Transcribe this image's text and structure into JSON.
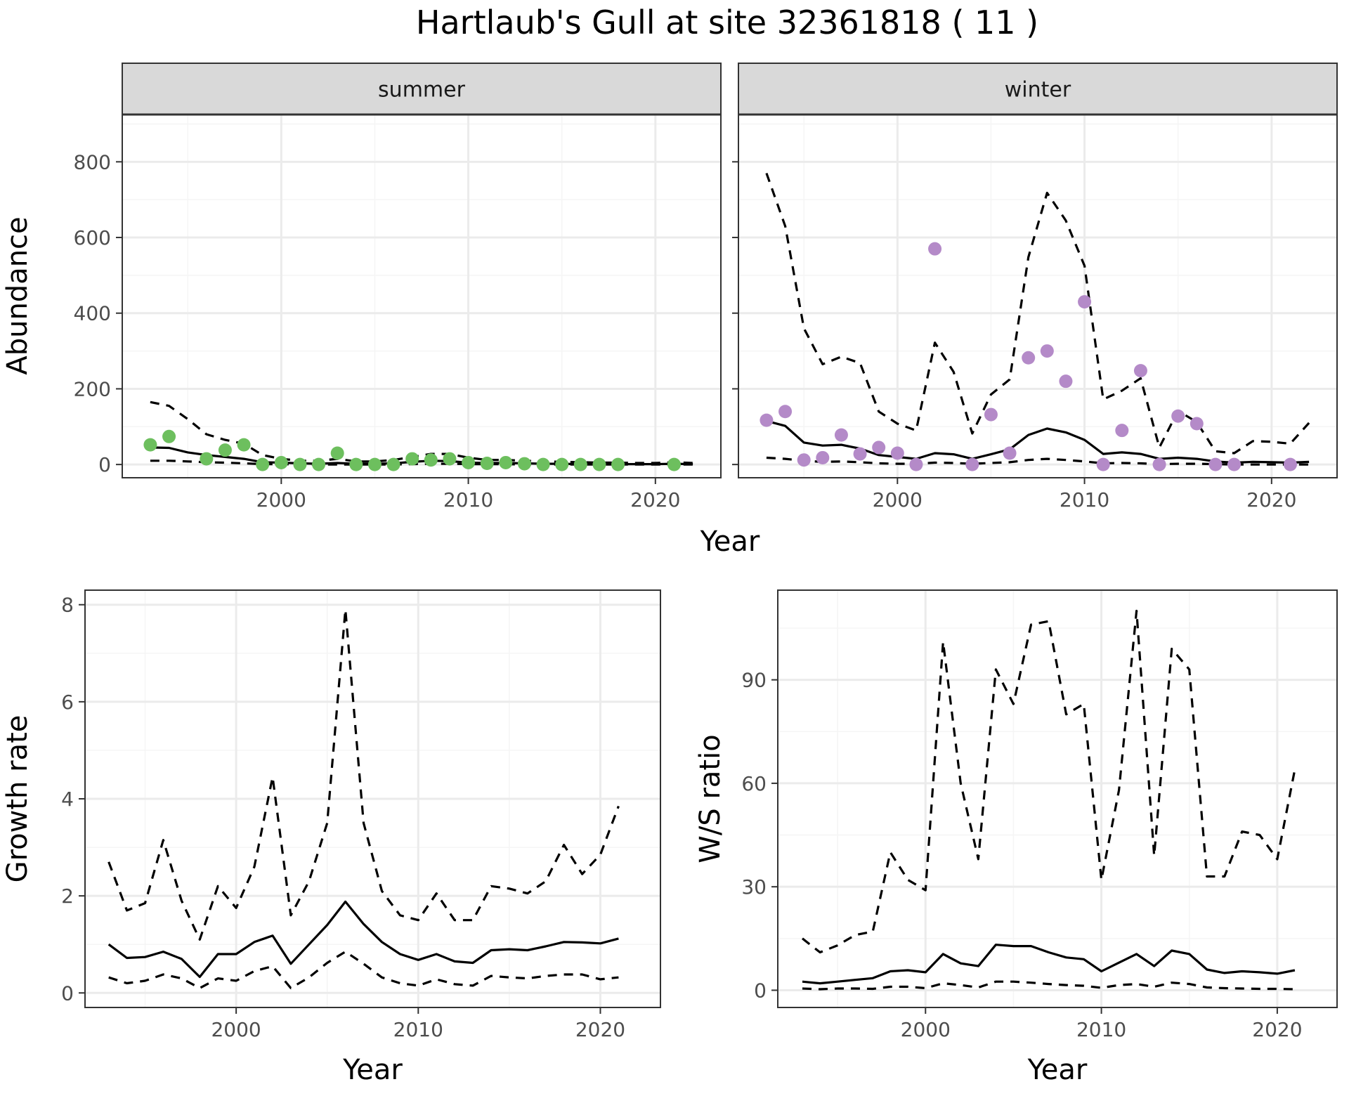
{
  "title": "Hartlaub's Gull at site 32361818 ( 11 )",
  "colors": {
    "summer_points": "#6dbf5e",
    "winter_points": "#b48ac8",
    "lines": "#000000",
    "grid_major": "#ebebeb",
    "grid_minor": "#f5f5f5",
    "strip_background": "#d9d9d9"
  },
  "chart_data": [
    {
      "type": "line",
      "panel": "summer",
      "strip": "summer",
      "xlabel": "Year",
      "ylabel": "Abundance",
      "xlim": [
        1991.5,
        2023.5
      ],
      "ylim": [
        -35,
        925
      ],
      "xticks": [
        2000,
        2010,
        2020
      ],
      "yticks": [
        0,
        200,
        400,
        600,
        800
      ],
      "grid": true,
      "points": {
        "x": [
          1993,
          1994,
          1996,
          1997,
          1998,
          1999,
          2000,
          2001,
          2002,
          2003,
          2004,
          2005,
          2006,
          2007,
          2008,
          2009,
          2010,
          2011,
          2012,
          2013,
          2014,
          2015,
          2016,
          2017,
          2018,
          2021
        ],
        "y": [
          52,
          74,
          15,
          38,
          52,
          0,
          5,
          0,
          0,
          30,
          0,
          0,
          0,
          15,
          12,
          15,
          5,
          3,
          5,
          2,
          0,
          0,
          0,
          0,
          0,
          0
        ]
      },
      "series": [
        {
          "x": [
            1993,
            1994,
            1995,
            1996,
            1997,
            1998,
            1999,
            2000,
            2001,
            2002,
            2003,
            2004,
            2005,
            2006,
            2007,
            2008,
            2009,
            2010,
            2011,
            2012,
            2013,
            2014,
            2015,
            2016,
            2017,
            2018,
            2019,
            2020,
            2021,
            2022
          ],
          "y": [
            45,
            44,
            32,
            25,
            20,
            15,
            6,
            5,
            3,
            2,
            4,
            2,
            2,
            3,
            7,
            10,
            9,
            5,
            4,
            4,
            3,
            2,
            2,
            1,
            1,
            1,
            1,
            1,
            2,
            1
          ]
        },
        {
          "x": [
            1993,
            1994,
            1995,
            1996,
            1997,
            1998,
            1999,
            2000,
            2001,
            2002,
            2003,
            2004,
            2005,
            2006,
            2007,
            2008,
            2009,
            2010,
            2011,
            2012,
            2013,
            2014,
            2015,
            2016,
            2017,
            2018,
            2019,
            2020,
            2021,
            2022
          ],
          "y": [
            165,
            155,
            120,
            80,
            65,
            55,
            25,
            15,
            10,
            10,
            15,
            8,
            8,
            12,
            20,
            28,
            28,
            18,
            12,
            12,
            10,
            8,
            7,
            6,
            5,
            5,
            4,
            4,
            6,
            4
          ]
        },
        {
          "x": [
            1993,
            1994,
            1995,
            1996,
            1997,
            1998,
            1999,
            2000,
            2001,
            2002,
            2003,
            2004,
            2005,
            2006,
            2007,
            2008,
            2009,
            2010,
            2011,
            2012,
            2013,
            2014,
            2015,
            2016,
            2017,
            2018,
            2019,
            2020,
            2021,
            2022
          ],
          "y": [
            10,
            10,
            8,
            6,
            5,
            3,
            1,
            1,
            0,
            0,
            0,
            0,
            0,
            0,
            1,
            2,
            2,
            1,
            1,
            1,
            0,
            0,
            0,
            0,
            0,
            0,
            0,
            0,
            0,
            0
          ]
        }
      ]
    },
    {
      "type": "line",
      "panel": "winter",
      "strip": "winter",
      "xlabel": "Year",
      "ylabel": "Abundance",
      "xlim": [
        1991.5,
        2023.5
      ],
      "ylim": [
        -35,
        925
      ],
      "xticks": [
        2000,
        2010,
        2020
      ],
      "yticks": [
        0,
        200,
        400,
        600,
        800
      ],
      "grid": true,
      "points": {
        "x": [
          1993,
          1994,
          1995,
          1996,
          1997,
          1998,
          1999,
          2000,
          2001,
          2002,
          2004,
          2005,
          2006,
          2007,
          2008,
          2009,
          2010,
          2011,
          2012,
          2013,
          2014,
          2015,
          2016,
          2017,
          2018,
          2021
        ],
        "y": [
          117,
          140,
          12,
          18,
          78,
          28,
          45,
          30,
          0,
          570,
          0,
          132,
          30,
          282,
          300,
          220,
          430,
          0,
          90,
          248,
          0,
          128,
          108,
          0,
          0,
          0
        ]
      },
      "series": [
        {
          "x": [
            1993,
            1994,
            1995,
            1996,
            1997,
            1998,
            1999,
            2000,
            2001,
            2002,
            2003,
            2004,
            2005,
            2006,
            2007,
            2008,
            2009,
            2010,
            2011,
            2012,
            2013,
            2014,
            2015,
            2016,
            2017,
            2018,
            2019,
            2020,
            2021,
            2022
          ],
          "y": [
            115,
            102,
            58,
            50,
            52,
            42,
            25,
            20,
            15,
            30,
            27,
            15,
            27,
            40,
            78,
            95,
            85,
            65,
            28,
            32,
            28,
            15,
            18,
            15,
            8,
            5,
            7,
            6,
            5,
            7
          ]
        },
        {
          "x": [
            1993,
            1994,
            1995,
            1996,
            1997,
            1998,
            1999,
            2000,
            2001,
            2002,
            2003,
            2004,
            2005,
            2006,
            2007,
            2008,
            2009,
            2010,
            2011,
            2012,
            2013,
            2014,
            2015,
            2016,
            2017,
            2018,
            2019,
            2020,
            2021,
            2022
          ],
          "y": [
            770,
            630,
            360,
            265,
            285,
            268,
            140,
            108,
            90,
            322,
            245,
            82,
            185,
            225,
            548,
            718,
            645,
            525,
            172,
            195,
            228,
            45,
            142,
            112,
            35,
            30,
            62,
            60,
            55,
            110
          ]
        },
        {
          "x": [
            1993,
            1994,
            1995,
            1996,
            1997,
            1998,
            1999,
            2000,
            2001,
            2002,
            2003,
            2004,
            2005,
            2006,
            2007,
            2008,
            2009,
            2010,
            2011,
            2012,
            2013,
            2014,
            2015,
            2016,
            2017,
            2018,
            2019,
            2020,
            2021,
            2022
          ],
          "y": [
            18,
            15,
            10,
            7,
            8,
            6,
            3,
            2,
            2,
            5,
            4,
            2,
            4,
            6,
            12,
            15,
            12,
            8,
            3,
            4,
            3,
            1,
            2,
            2,
            1,
            0,
            0,
            0,
            0,
            0
          ]
        }
      ]
    },
    {
      "type": "line",
      "panel": "growth",
      "xlabel": "Year",
      "ylabel": "Growth rate",
      "xlim": [
        1991.7,
        2023.3
      ],
      "ylim": [
        -0.3,
        8.3
      ],
      "xticks": [
        2000,
        2010,
        2020
      ],
      "yticks": [
        0,
        2,
        4,
        6,
        8
      ],
      "grid": true,
      "series": [
        {
          "x": [
            1993,
            1994,
            1995,
            1996,
            1997,
            1998,
            1999,
            2000,
            2001,
            2002,
            2003,
            2004,
            2005,
            2006,
            2007,
            2008,
            2009,
            2010,
            2011,
            2012,
            2013,
            2014,
            2015,
            2016,
            2017,
            2018,
            2019,
            2020,
            2021
          ],
          "y": [
            1.0,
            0.72,
            0.74,
            0.85,
            0.7,
            0.33,
            0.8,
            0.8,
            1.05,
            1.18,
            0.6,
            1.0,
            1.4,
            1.88,
            1.42,
            1.05,
            0.8,
            0.68,
            0.8,
            0.65,
            0.62,
            0.88,
            0.9,
            0.88,
            0.96,
            1.05,
            1.04,
            1.02,
            1.12
          ]
        },
        {
          "x": [
            1993,
            1994,
            1995,
            1996,
            1997,
            1998,
            1999,
            2000,
            2001,
            2002,
            2003,
            2004,
            2005,
            2006,
            2007,
            2008,
            2009,
            2010,
            2011,
            2012,
            2013,
            2014,
            2015,
            2016,
            2017,
            2018,
            2019,
            2020,
            2021
          ],
          "y": [
            2.7,
            1.7,
            1.85,
            3.15,
            1.9,
            1.1,
            2.2,
            1.75,
            2.6,
            4.45,
            1.6,
            2.3,
            3.5,
            7.9,
            3.5,
            2.1,
            1.6,
            1.5,
            2.05,
            1.5,
            1.5,
            2.2,
            2.15,
            2.05,
            2.3,
            3.05,
            2.45,
            2.85,
            3.85
          ]
        },
        {
          "x": [
            1993,
            1994,
            1995,
            1996,
            1997,
            1998,
            1999,
            2000,
            2001,
            2002,
            2003,
            2004,
            2005,
            2006,
            2007,
            2008,
            2009,
            2010,
            2011,
            2012,
            2013,
            2014,
            2015,
            2016,
            2017,
            2018,
            2019,
            2020,
            2021
          ],
          "y": [
            0.32,
            0.2,
            0.25,
            0.38,
            0.3,
            0.1,
            0.3,
            0.25,
            0.45,
            0.55,
            0.1,
            0.32,
            0.62,
            0.85,
            0.6,
            0.32,
            0.2,
            0.15,
            0.28,
            0.18,
            0.15,
            0.35,
            0.32,
            0.3,
            0.35,
            0.38,
            0.38,
            0.28,
            0.32
          ]
        }
      ]
    },
    {
      "type": "line",
      "panel": "ratio",
      "xlabel": "Year",
      "ylabel": "W/S ratio",
      "xlim": [
        1991.6,
        2023.4
      ],
      "ylim": [
        -5,
        116
      ],
      "xticks": [
        2000,
        2010,
        2020
      ],
      "yticks": [
        0,
        30,
        60,
        90
      ],
      "grid": true,
      "series": [
        {
          "x": [
            1993,
            1994,
            1995,
            1996,
            1997,
            1998,
            1999,
            2000,
            2001,
            2002,
            2003,
            2004,
            2005,
            2006,
            2007,
            2008,
            2009,
            2010,
            2011,
            2012,
            2013,
            2014,
            2015,
            2016,
            2017,
            2018,
            2019,
            2020,
            2021
          ],
          "y": [
            2.5,
            2,
            2.5,
            3,
            3.5,
            5.5,
            5.8,
            5.2,
            10.5,
            7.8,
            7,
            13.2,
            12.8,
            12.8,
            11,
            9.5,
            9,
            5.5,
            8,
            10.5,
            7,
            11.5,
            10.5,
            6,
            5,
            5.5,
            5.2,
            4.8,
            5.8
          ]
        },
        {
          "x": [
            1993,
            1994,
            1995,
            1996,
            1997,
            1998,
            1999,
            2000,
            2001,
            2002,
            2003,
            2004,
            2005,
            2006,
            2007,
            2008,
            2009,
            2010,
            2011,
            2012,
            2013,
            2014,
            2015,
            2016,
            2017,
            2018,
            2019,
            2020,
            2021
          ],
          "y": [
            15,
            11,
            13,
            16,
            17,
            40,
            32,
            29,
            101,
            60,
            38,
            93,
            83,
            106,
            107,
            80,
            83,
            32,
            58,
            110,
            39,
            99,
            93,
            33,
            33,
            46,
            45,
            38,
            64
          ]
        },
        {
          "x": [
            1993,
            1994,
            1995,
            1996,
            1997,
            1998,
            1999,
            2000,
            2001,
            2002,
            2003,
            2004,
            2005,
            2006,
            2007,
            2008,
            2009,
            2010,
            2011,
            2012,
            2013,
            2014,
            2015,
            2016,
            2017,
            2018,
            2019,
            2020,
            2021
          ],
          "y": [
            0.5,
            0.3,
            0.5,
            0.5,
            0.4,
            1,
            1,
            0.6,
            2,
            1.5,
            0.8,
            2.5,
            2.5,
            2.2,
            1.8,
            1.5,
            1.3,
            0.7,
            1.5,
            1.8,
            1,
            2.2,
            1.8,
            0.8,
            0.6,
            0.5,
            0.4,
            0.4,
            0.3
          ]
        }
      ]
    }
  ]
}
